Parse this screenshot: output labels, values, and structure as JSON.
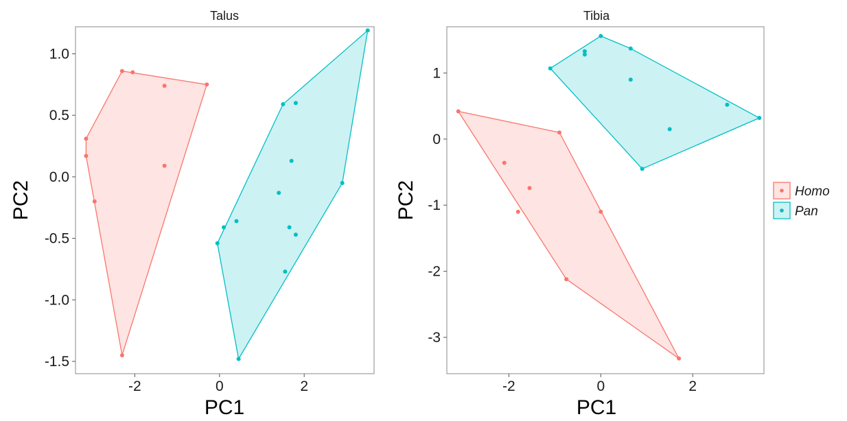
{
  "chart_data": [
    {
      "type": "scatter",
      "title": "Talus",
      "xlabel": "PC1",
      "ylabel": "PC2",
      "xlim": [
        -3.4,
        3.65
      ],
      "ylim": [
        -1.6,
        1.22
      ],
      "xticks": [
        -2,
        0,
        2
      ],
      "yticks": [
        1.0,
        0.5,
        0.0,
        -0.5,
        -1.0,
        -1.5
      ],
      "ytick_labels": [
        "1.0",
        "0.5",
        "0.0",
        "-0.5",
        "-1.0",
        "-1.5"
      ],
      "xtick_labels": [
        "-2",
        "0",
        "2"
      ],
      "grid": false,
      "series": [
        {
          "name": "Homo",
          "color": "#F8766D",
          "points": [
            [
              -2.3,
              0.86
            ],
            [
              -2.05,
              0.85
            ],
            [
              -1.3,
              0.74
            ],
            [
              -0.3,
              0.75
            ],
            [
              -3.15,
              0.31
            ],
            [
              -3.15,
              0.17
            ],
            [
              -1.3,
              0.09
            ],
            [
              -2.95,
              -0.2
            ],
            [
              -2.3,
              -1.45
            ]
          ],
          "hull": [
            [
              -3.15,
              0.31
            ],
            [
              -2.3,
              0.86
            ],
            [
              -0.3,
              0.75
            ],
            [
              -2.3,
              -1.45
            ],
            [
              -3.15,
              0.17
            ]
          ]
        },
        {
          "name": "Pan",
          "color": "#00BFC4",
          "points": [
            [
              3.5,
              1.19
            ],
            [
              1.5,
              0.59
            ],
            [
              1.8,
              0.6
            ],
            [
              1.7,
              0.13
            ],
            [
              2.9,
              -0.05
            ],
            [
              1.4,
              -0.13
            ],
            [
              0.4,
              -0.36
            ],
            [
              0.1,
              -0.41
            ],
            [
              1.65,
              -0.41
            ],
            [
              1.8,
              -0.47
            ],
            [
              -0.05,
              -0.54
            ],
            [
              1.55,
              -0.77
            ],
            [
              0.45,
              -1.48
            ]
          ],
          "hull": [
            [
              3.5,
              1.19
            ],
            [
              2.9,
              -0.05
            ],
            [
              0.45,
              -1.48
            ],
            [
              -0.05,
              -0.54
            ],
            [
              1.5,
              0.59
            ]
          ]
        }
      ]
    },
    {
      "type": "scatter",
      "title": "Tibia",
      "xlabel": "PC1",
      "ylabel": "PC2",
      "xlim": [
        -3.35,
        3.55
      ],
      "ylim": [
        -3.55,
        1.7
      ],
      "xticks": [
        -2,
        0,
        2
      ],
      "yticks": [
        1,
        0,
        -1,
        -2,
        -3
      ],
      "ytick_labels": [
        "1",
        "0",
        "-1",
        "-2",
        "-3"
      ],
      "xtick_labels": [
        "-2",
        "0",
        "2"
      ],
      "grid": false,
      "series": [
        {
          "name": "Homo",
          "color": "#F8766D",
          "points": [
            [
              -3.1,
              0.42
            ],
            [
              -0.9,
              0.1
            ],
            [
              -2.1,
              -0.36
            ],
            [
              -1.55,
              -0.74
            ],
            [
              -1.8,
              -1.1
            ],
            [
              0.0,
              -1.1
            ],
            [
              -0.75,
              -2.12
            ],
            [
              1.7,
              -3.32
            ]
          ],
          "hull": [
            [
              -3.1,
              0.42
            ],
            [
              -0.9,
              0.1
            ],
            [
              1.7,
              -3.32
            ],
            [
              -0.75,
              -2.12
            ]
          ]
        },
        {
          "name": "Pan",
          "color": "#00BFC4",
          "points": [
            [
              0.0,
              1.56
            ],
            [
              0.65,
              1.37
            ],
            [
              -0.35,
              1.33
            ],
            [
              -0.35,
              1.28
            ],
            [
              -1.1,
              1.07
            ],
            [
              0.65,
              0.9
            ],
            [
              2.75,
              0.52
            ],
            [
              3.45,
              0.32
            ],
            [
              1.5,
              0.15
            ],
            [
              0.9,
              -0.45
            ]
          ],
          "hull": [
            [
              -1.1,
              1.07
            ],
            [
              0.0,
              1.56
            ],
            [
              0.65,
              1.37
            ],
            [
              3.45,
              0.32
            ],
            [
              0.9,
              -0.45
            ]
          ]
        }
      ]
    }
  ],
  "legend": {
    "position": "right",
    "items": [
      {
        "label": "Homo",
        "color": "#F8766D"
      },
      {
        "label": "Pan",
        "color": "#00BFC4"
      }
    ]
  }
}
